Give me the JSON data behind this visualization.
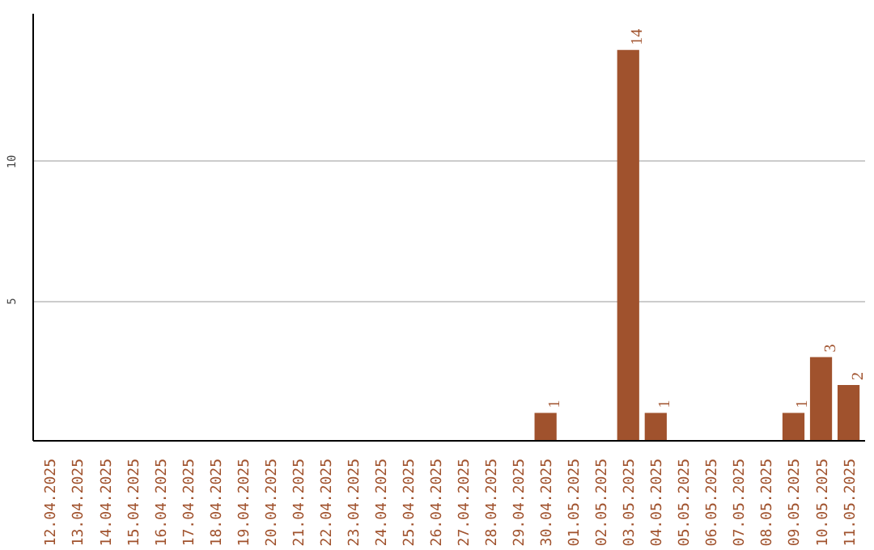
{
  "chart_data": {
    "type": "bar",
    "categories": [
      "12.04.2025",
      "13.04.2025",
      "14.04.2025",
      "15.04.2025",
      "16.04.2025",
      "17.04.2025",
      "18.04.2025",
      "19.04.2025",
      "20.04.2025",
      "21.04.2025",
      "22.04.2025",
      "23.04.2025",
      "24.04.2025",
      "25.04.2025",
      "26.04.2025",
      "27.04.2025",
      "28.04.2025",
      "29.04.2025",
      "30.04.2025",
      "01.05.2025",
      "02.05.2025",
      "03.05.2025",
      "04.05.2025",
      "05.05.2025",
      "06.05.2025",
      "07.05.2025",
      "08.05.2025",
      "09.05.2025",
      "10.05.2025",
      "11.05.2025"
    ],
    "values": [
      0,
      0,
      0,
      0,
      0,
      0,
      0,
      0,
      0,
      0,
      0,
      0,
      0,
      0,
      0,
      0,
      0,
      0,
      1,
      0,
      0,
      14,
      1,
      0,
      0,
      0,
      0,
      1,
      3,
      2
    ],
    "value_labels": [
      null,
      null,
      null,
      null,
      null,
      null,
      null,
      null,
      null,
      null,
      null,
      null,
      null,
      null,
      null,
      null,
      null,
      null,
      "1",
      null,
      null,
      "14",
      "1",
      null,
      null,
      null,
      null,
      "1",
      "3",
      "2"
    ],
    "color": "#a0522d",
    "ylim": [
      0,
      15.3
    ],
    "yticks": [
      5,
      10
    ],
    "grid": "y"
  }
}
